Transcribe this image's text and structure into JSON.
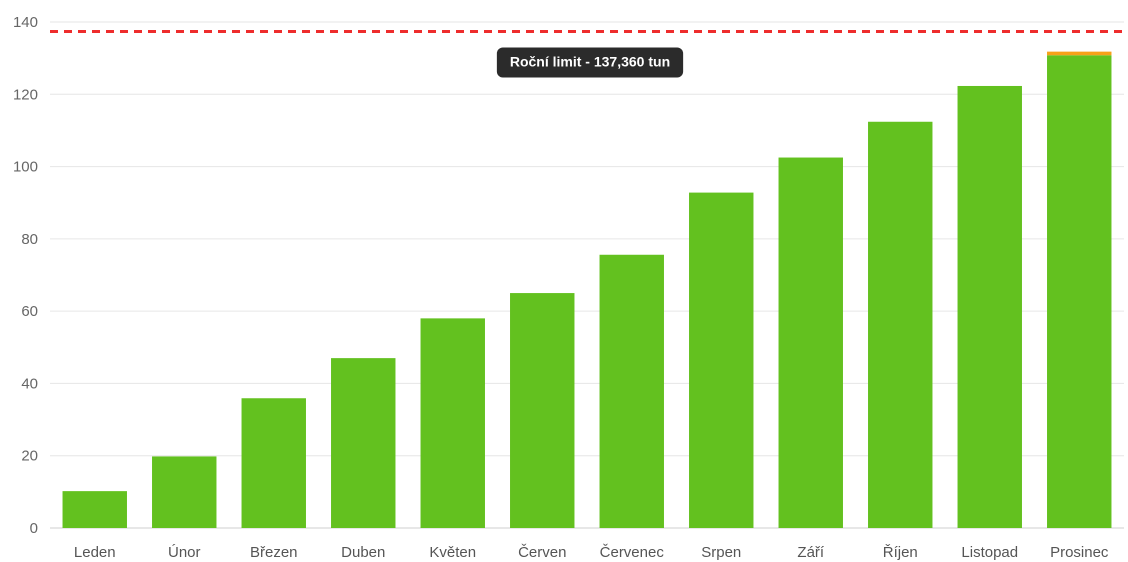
{
  "chart_data": {
    "type": "bar",
    "categories": [
      "Leden",
      "Únor",
      "Březen",
      "Duben",
      "Květen",
      "Červen",
      "Červenec",
      "Srpen",
      "Září",
      "Říjen",
      "Listopad",
      "Prosinec"
    ],
    "series": [
      {
        "values": [
          10.2,
          19.8,
          35.9,
          47.0,
          58.0,
          65.0,
          75.6,
          92.8,
          102.5,
          112.4,
          122.3,
          130.8
        ],
        "color": "#63c11f"
      },
      {
        "values": [
          0,
          0,
          0,
          0,
          0,
          0,
          0,
          0,
          0,
          0,
          0,
          1.0
        ],
        "color": "#f7a11a"
      }
    ],
    "ylim": [
      0,
      140
    ],
    "yticks": [
      0,
      20,
      40,
      60,
      80,
      100,
      120,
      140
    ],
    "grid": true,
    "limit_line": {
      "value": 137.36,
      "color": "#ee2c2c",
      "style": "dashed",
      "label": "Roční limit - 137,360 tun"
    }
  }
}
